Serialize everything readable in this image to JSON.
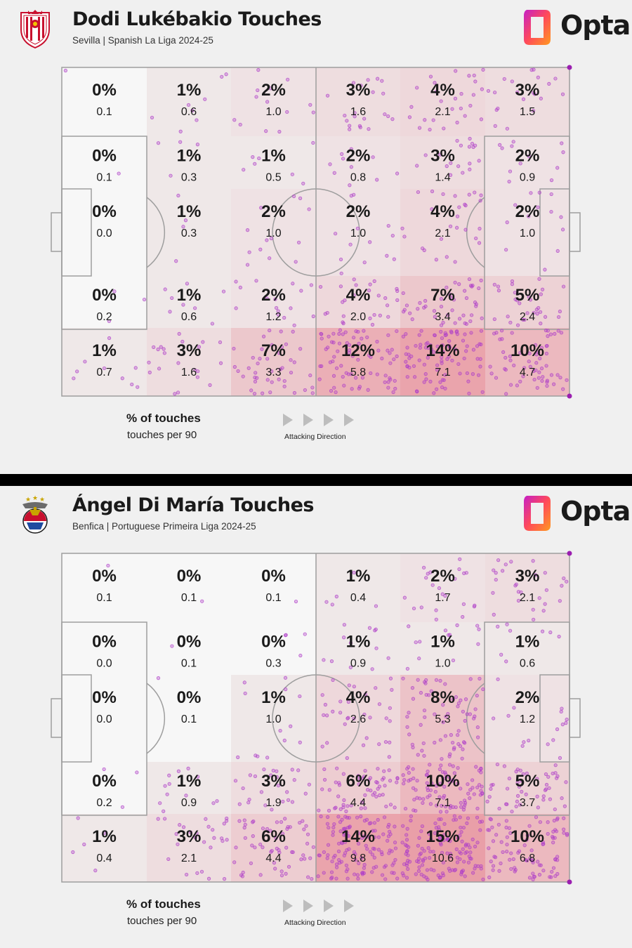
{
  "charts": [
    {
      "player_title": "Dodi Lukébakio Touches",
      "subtitle": "Sevilla | Spanish La Liga 2024-25",
      "logo_label": "Opta",
      "legend_pct_label": "% of touches",
      "legend_per90_label": "touches per 90",
      "direction_label": "Attacking Direction",
      "crest_icon": "sevilla-crest-icon",
      "heat_color": "#e8919b",
      "dot_color": "#b040c8"
    },
    {
      "player_title": "Ángel Di María Touches",
      "subtitle": "Benfica | Portuguese Primeira Liga 2024-25",
      "logo_label": "Opta",
      "legend_pct_label": "% of touches",
      "legend_per90_label": "touches per 90",
      "direction_label": "Attacking Direction",
      "crest_icon": "benfica-crest-icon",
      "heat_color": "#e8919b",
      "dot_color": "#b040c8"
    }
  ],
  "chart_data": [
    {
      "type": "heatmap",
      "title": "Dodi Lukébakio Touches",
      "columns": 6,
      "rows": 5,
      "pct": [
        [
          "0%",
          "1%",
          "2%",
          "3%",
          "4%",
          "3%"
        ],
        [
          "0%",
          "1%",
          "1%",
          "2%",
          "3%",
          "2%"
        ],
        [
          "0%",
          "1%",
          "2%",
          "2%",
          "4%",
          "2%"
        ],
        [
          "0%",
          "1%",
          "2%",
          "4%",
          "7%",
          "5%"
        ],
        [
          "1%",
          "3%",
          "7%",
          "12%",
          "14%",
          "10%"
        ]
      ],
      "per90": [
        [
          "0.1",
          "0.6",
          "1.0",
          "1.6",
          "2.1",
          "1.5"
        ],
        [
          "0.1",
          "0.3",
          "0.5",
          "0.8",
          "1.4",
          "0.9"
        ],
        [
          "0.0",
          "0.3",
          "1.0",
          "1.0",
          "2.1",
          "1.0"
        ],
        [
          "0.2",
          "0.6",
          "1.2",
          "2.0",
          "3.4",
          "2.4"
        ],
        [
          "0.7",
          "1.6",
          "3.3",
          "5.8",
          "7.1",
          "4.7"
        ]
      ],
      "legend": [
        "% of touches",
        "touches per 90"
      ]
    },
    {
      "type": "heatmap",
      "title": "Ángel Di María Touches",
      "columns": 6,
      "rows": 5,
      "pct": [
        [
          "0%",
          "0%",
          "0%",
          "1%",
          "2%",
          "3%"
        ],
        [
          "0%",
          "0%",
          "0%",
          "1%",
          "1%",
          "1%"
        ],
        [
          "0%",
          "0%",
          "1%",
          "4%",
          "8%",
          "2%"
        ],
        [
          "0%",
          "1%",
          "3%",
          "6%",
          "10%",
          "5%"
        ],
        [
          "1%",
          "3%",
          "6%",
          "14%",
          "15%",
          "10%"
        ]
      ],
      "per90": [
        [
          "0.1",
          "0.1",
          "0.1",
          "0.4",
          "1.7",
          "2.1"
        ],
        [
          "0.0",
          "0.1",
          "0.3",
          "0.9",
          "1.0",
          "0.6"
        ],
        [
          "0.0",
          "0.1",
          "1.0",
          "2.6",
          "5.3",
          "1.2"
        ],
        [
          "0.2",
          "0.9",
          "1.9",
          "4.4",
          "7.1",
          "3.7"
        ],
        [
          "0.4",
          "2.1",
          "4.4",
          "9.8",
          "10.6",
          "6.8"
        ]
      ],
      "legend": [
        "% of touches",
        "touches per 90"
      ]
    }
  ]
}
